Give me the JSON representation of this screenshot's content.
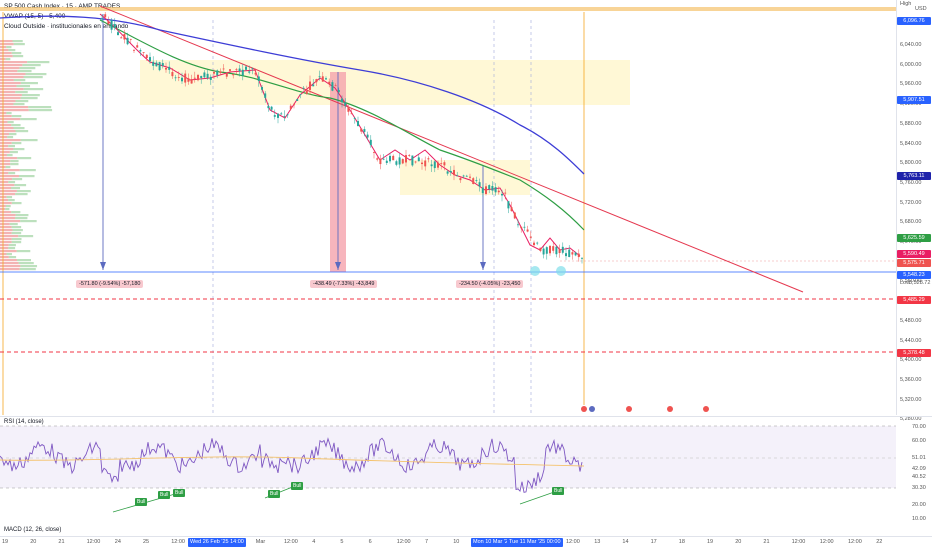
{
  "legend": {
    "symbol_line": "SP 500 Cash Index · 15 · AMP TRADES",
    "vwap_line": "VWAP (15, 5) · 5,400",
    "indicator_line": "Cloud Outside · institucionales en entrando"
  },
  "price_axis": {
    "high_label": "High",
    "currency": "USD",
    "ticks": [
      "6,040.00",
      "6,000.00",
      "5,960.00",
      "5,920.00",
      "5,880.00",
      "5,840.00",
      "5,800.00",
      "5,760.00",
      "5,720.00",
      "5,680.00",
      "5,640.00",
      "5,600.00",
      "5,560.00",
      "5,520.00",
      "5,480.00",
      "5,440.00",
      "5,400.00",
      "5,360.00",
      "5,320.00",
      "5,280.00"
    ],
    "labels": [
      {
        "text": "6,096.76",
        "color": "#2962ff"
      },
      {
        "text": "5,907.51",
        "color": "#2962ff"
      },
      {
        "text": "5,763.11",
        "color": "#1e22aa"
      },
      {
        "text": "5,625.59",
        "color": "#2e9e44"
      },
      {
        "text": "5,590.49",
        "color": "#e91e63"
      },
      {
        "text": "5,575.71",
        "color": "#ef5350"
      },
      {
        "text": "5,548.23",
        "color": "#2962ff"
      },
      {
        "text": "5,485.29",
        "color": "#f23645"
      },
      {
        "text": "5,378.48",
        "color": "#f23645"
      }
    ],
    "low_label": "Low",
    "low_value": "5,528.72"
  },
  "measurements": [
    "-571.80 (-9.54%) -57,180",
    "-438.49 (-7.33%) -43,849",
    "-234.50 (-4.05%) -23,450"
  ],
  "rsi": {
    "title": "RSI (14, close)",
    "ticks": [
      "70.00",
      "60.00",
      "51.01",
      "42.09",
      "40.52",
      "30.30",
      "20.00",
      "10.00"
    ],
    "bull_label": "Bull"
  },
  "macd": {
    "title": "MACD (12, 26, close)"
  },
  "time_axis": {
    "ticks": [
      "19",
      "20",
      "21",
      "12:00",
      "24",
      "25",
      "12:00",
      "27",
      "28",
      "Mar",
      "12:00",
      "4",
      "5",
      "6",
      "12:00",
      "7",
      "10",
      "12:00",
      "11",
      "12",
      "12:00",
      "13",
      "14",
      "17",
      "18",
      "19",
      "20",
      "21",
      "12:00",
      "12:00",
      "12:00",
      "22"
    ],
    "selected": [
      "Wed 26 Feb '25   14:00",
      "Mon 10 Mar '25   00:00",
      "Tue 11 Mar '25   00:00"
    ]
  },
  "colors": {
    "price_line": "#e91e63",
    "ema_green": "#2e9e44",
    "sma_blue": "#3d3dd6",
    "trend_red": "#e53950",
    "zone_yellow": "#fff6cc",
    "rsi_line": "#7e57c2"
  }
}
